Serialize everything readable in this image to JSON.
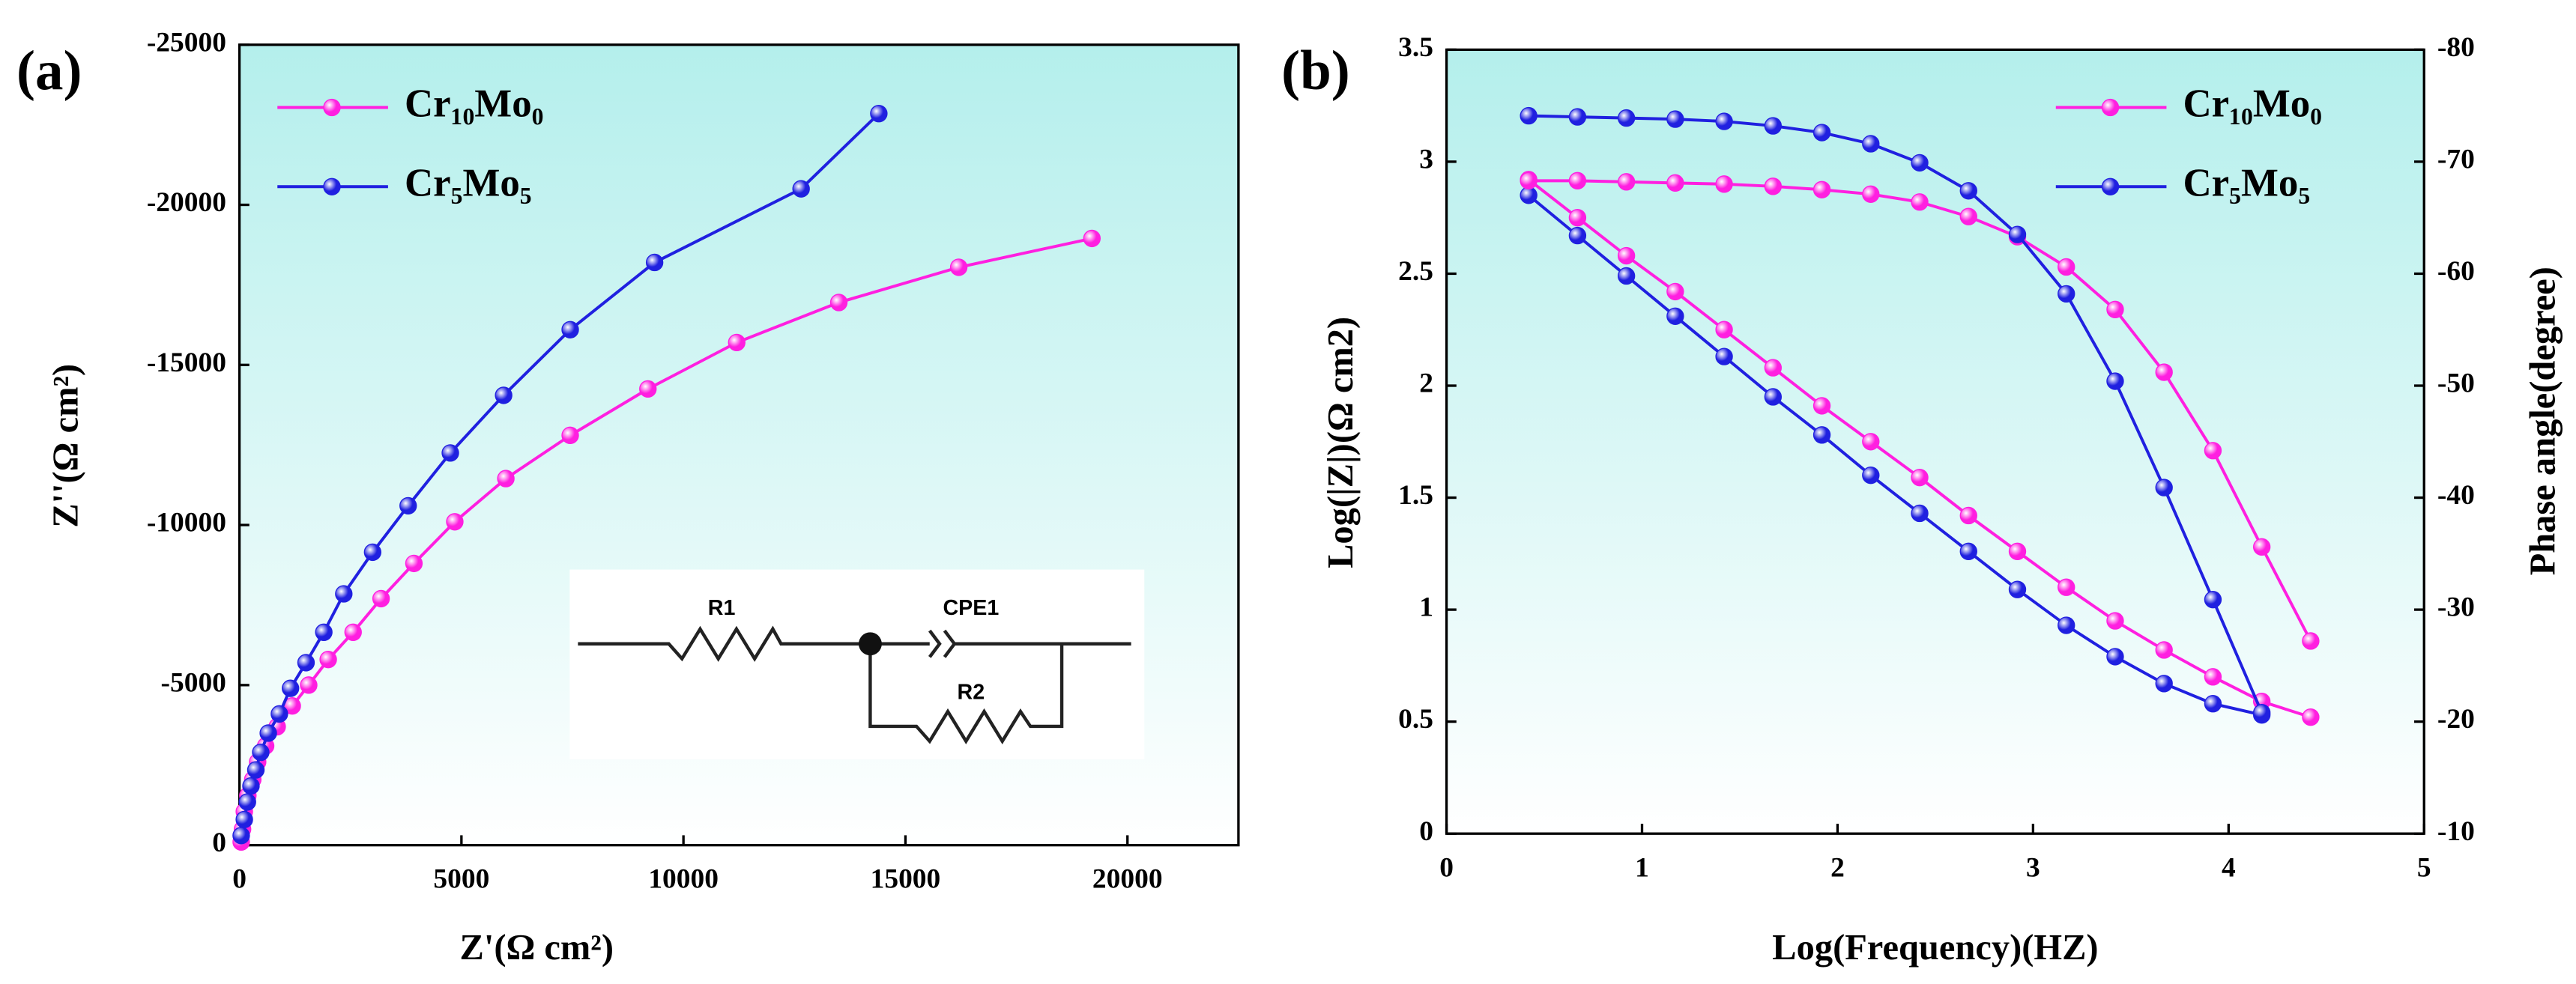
{
  "chart_data": [
    {
      "type": "line",
      "panel_label": "(a)",
      "x_label": "Z'(Ω cm²)",
      "y_label": "Z''(Ω cm²)",
      "xlim": [
        0,
        22500
      ],
      "ylim": [
        0,
        -25000
      ],
      "xticks": [
        0,
        5000,
        10000,
        15000,
        20000
      ],
      "yticks": [
        0,
        -5000,
        -10000,
        -15000,
        -20000,
        -25000
      ],
      "legend": "upper left",
      "inset_labels": [
        "R1",
        "CPE1",
        "R2"
      ],
      "series": [
        {
          "name": "Cr₁₀Mo₀",
          "color": "#ff1fe0",
          "x": [
            19200,
            16200,
            13500,
            11200,
            9200,
            7450,
            6000,
            4850,
            3930,
            3190,
            2560,
            2000,
            1560,
            1190,
            850,
            590,
            410,
            300,
            190,
            110,
            70,
            40
          ],
          "values": [
            -18950,
            -18050,
            -16950,
            -15700,
            -14250,
            -12800,
            -11450,
            -10100,
            -8800,
            -7700,
            -6650,
            -5800,
            -5000,
            -4350,
            -3700,
            -3100,
            -2600,
            -2050,
            -1550,
            -1050,
            -500,
            -100
          ]
        },
        {
          "name": "Cr₅Mo₅",
          "color": "#2020e0",
          "x": [
            14400,
            12650,
            9350,
            7450,
            5950,
            4750,
            3800,
            3000,
            2350,
            1900,
            1500,
            1150,
            900,
            650,
            480,
            370,
            260,
            180,
            110,
            40
          ],
          "values": [
            -22850,
            -20500,
            -18200,
            -16100,
            -14050,
            -12250,
            -10600,
            -9150,
            -7850,
            -6650,
            -5700,
            -4900,
            -4100,
            -3500,
            -2900,
            -2350,
            -1850,
            -1350,
            -800,
            -300
          ]
        }
      ]
    },
    {
      "type": "line",
      "panel_label": "(b)",
      "x_label": "Log(Frequency)(HZ)",
      "y_label": "Log(|Z|)(Ω cm2)",
      "y2_label": "Phase angle(degree)",
      "xlim": [
        0,
        5
      ],
      "ylim": [
        0,
        3.5
      ],
      "y2lim": [
        -10,
        -80
      ],
      "xticks": [
        0,
        1,
        2,
        3,
        4,
        5
      ],
      "yticks": [
        0,
        0.5,
        1,
        1.5,
        2,
        2.5,
        3,
        3.5
      ],
      "y2ticks": [
        -10,
        -20,
        -30,
        -40,
        -50,
        -60,
        -70,
        -80
      ],
      "legend": "upper right",
      "series": [
        {
          "name": "Cr₁₀Mo₀",
          "color": "#ff1fe0",
          "x": [
            0.42,
            0.67,
            0.92,
            1.17,
            1.42,
            1.67,
            1.92,
            2.17,
            2.42,
            2.67,
            2.92,
            3.17,
            3.42,
            3.67,
            3.92,
            4.17,
            4.42
          ],
          "values": [
            2.92,
            2.75,
            2.58,
            2.42,
            2.25,
            2.08,
            1.91,
            1.75,
            1.59,
            1.42,
            1.26,
            1.1,
            0.95,
            0.82,
            0.7,
            0.59,
            0.52
          ]
        },
        {
          "name": "Cr₅Mo₅",
          "color": "#2020e0",
          "x": [
            0.42,
            0.67,
            0.92,
            1.17,
            1.42,
            1.67,
            1.92,
            2.17,
            2.42,
            2.67,
            2.92,
            3.17,
            3.42,
            3.67,
            3.92,
            4.17
          ],
          "values": [
            2.85,
            2.67,
            2.49,
            2.31,
            2.13,
            1.95,
            1.78,
            1.6,
            1.43,
            1.26,
            1.09,
            0.93,
            0.79,
            0.67,
            0.58,
            0.53
          ]
        },
        {
          "color": "#ff1fe0",
          "axis": "y2",
          "x": [
            0.42,
            0.67,
            0.92,
            1.17,
            1.42,
            1.67,
            1.92,
            2.17,
            2.42,
            2.67,
            2.92,
            3.17,
            3.42,
            3.67,
            3.92,
            4.17,
            4.42
          ],
          "values": [
            -68.3,
            -68.3,
            -68.2,
            -68.1,
            -68,
            -67.8,
            -67.5,
            -67.1,
            -66.4,
            -65.1,
            -63.3,
            -60.6,
            -56.8,
            -51.2,
            -44.2,
            -35.6,
            -27.2
          ]
        },
        {
          "color": "#2020e0",
          "axis": "y2",
          "x": [
            0.42,
            0.67,
            0.92,
            1.17,
            1.42,
            1.67,
            1.92,
            2.17,
            2.42,
            2.67,
            2.92,
            3.17,
            3.42,
            3.67,
            3.92,
            4.17
          ],
          "values": [
            -74.1,
            -74,
            -73.9,
            -73.8,
            -73.6,
            -73.2,
            -72.6,
            -71.6,
            -69.9,
            -67.4,
            -63.5,
            -58.2,
            -50.4,
            -40.9,
            -30.9,
            -20.8
          ]
        }
      ]
    }
  ]
}
